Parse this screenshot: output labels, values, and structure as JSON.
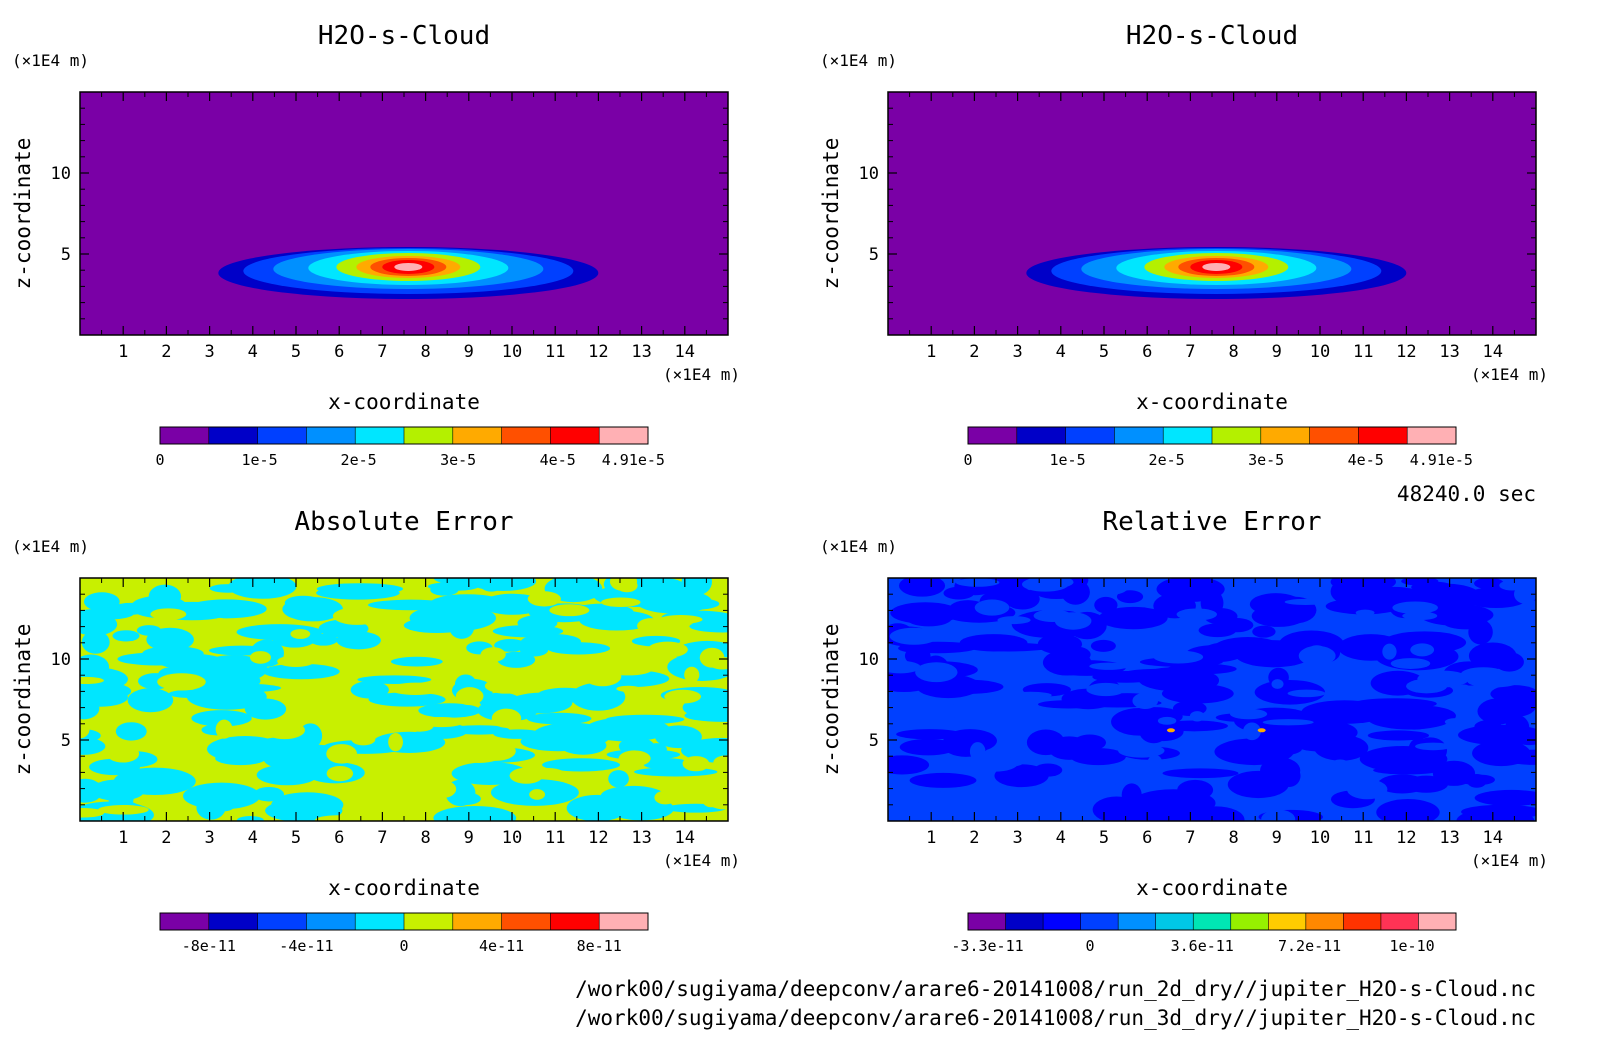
{
  "window": {
    "time_label": "48240.0 sec"
  },
  "footer": {
    "path_lines": [
      "/work00/sugiyama/deepconv/arare6-20141008/run_2d_dry//jupiter_H2O-s-Cloud.nc",
      "/work00/sugiyama/deepconv/arare6-20141008/run_3d_dry//jupiter_H2O-s-Cloud.nc"
    ]
  },
  "palette": {
    "cloud": [
      "#7a00a6",
      "#0000c8",
      "#0040ff",
      "#0090ff",
      "#00e6ff",
      "#b4f000",
      "#ffaa00",
      "#ff5000",
      "#ff0000",
      "#ffb0b4"
    ],
    "abs_error": [
      "#7a00a6",
      "#0000c8",
      "#0040ff",
      "#0090ff",
      "#00e6ff",
      "#c8f000",
      "#ffaa00",
      "#ff5000",
      "#ff0000",
      "#ffb0b4"
    ],
    "rel_error": [
      "#7a00a6",
      "#0000c8",
      "#0000ff",
      "#0040ff",
      "#0090ff",
      "#00c8e6",
      "#00e6b4",
      "#96f000",
      "#ffcc00",
      "#ff8800",
      "#ff3300",
      "#ff3355",
      "#ffb0b4"
    ]
  },
  "chart_data": [
    {
      "type": "heatmap",
      "id": "h2o_a",
      "title": "H2O-s-Cloud",
      "xlabel": "x-coordinate",
      "ylabel": "z-coordinate",
      "x_unit": "(×1E4 m)",
      "y_unit": "(×1E4 m)",
      "xlim": [
        0,
        15
      ],
      "ylim": [
        0,
        15
      ],
      "x_ticks": [
        "1",
        "2",
        "3",
        "4",
        "5",
        "6",
        "7",
        "8",
        "9",
        "10",
        "11",
        "12",
        "13",
        "14"
      ],
      "y_ticks": [
        "5",
        "10"
      ],
      "colorbar_labels": [
        "0",
        "1e-5",
        "2e-5",
        "3e-5",
        "4e-5",
        "4.91e-5"
      ],
      "palette": "cloud",
      "cloud_center": [
        7.6,
        4.2
      ],
      "max_value": 4.91e-05
    },
    {
      "type": "heatmap",
      "id": "h2o_b",
      "title": "H2O-s-Cloud",
      "xlabel": "x-coordinate",
      "ylabel": "z-coordinate",
      "x_unit": "(×1E4 m)",
      "y_unit": "(×1E4 m)",
      "xlim": [
        0,
        15
      ],
      "ylim": [
        0,
        15
      ],
      "x_ticks": [
        "1",
        "2",
        "3",
        "4",
        "5",
        "6",
        "7",
        "8",
        "9",
        "10",
        "11",
        "12",
        "13",
        "14"
      ],
      "y_ticks": [
        "5",
        "10"
      ],
      "colorbar_labels": [
        "0",
        "1e-5",
        "2e-5",
        "3e-5",
        "4e-5",
        "4.91e-5"
      ],
      "palette": "cloud",
      "cloud_center": [
        7.6,
        4.2
      ],
      "max_value": 4.91e-05
    },
    {
      "type": "heatmap",
      "id": "abs_err",
      "title": "Absolute Error",
      "xlabel": "x-coordinate",
      "ylabel": "z-coordinate",
      "x_unit": "(×1E4 m)",
      "y_unit": "(×1E4 m)",
      "xlim": [
        0,
        15
      ],
      "ylim": [
        0,
        15
      ],
      "x_ticks": [
        "1",
        "2",
        "3",
        "4",
        "5",
        "6",
        "7",
        "8",
        "9",
        "10",
        "11",
        "12",
        "13",
        "14"
      ],
      "y_ticks": [
        "5",
        "10"
      ],
      "colorbar_labels": [
        "-8e-11",
        "-4e-11",
        "0",
        "4e-11",
        "8e-11"
      ],
      "palette": "abs_error",
      "field_colors": [
        "#c8f000",
        "#00e6ff"
      ]
    },
    {
      "type": "heatmap",
      "id": "rel_err",
      "title": "Relative Error",
      "xlabel": "x-coordinate",
      "ylabel": "z-coordinate",
      "x_unit": "(×1E4 m)",
      "y_unit": "(×1E4 m)",
      "xlim": [
        0,
        15
      ],
      "ylim": [
        0,
        15
      ],
      "x_ticks": [
        "1",
        "2",
        "3",
        "4",
        "5",
        "6",
        "7",
        "8",
        "9",
        "10",
        "11",
        "12",
        "13",
        "14"
      ],
      "y_ticks": [
        "5",
        "10"
      ],
      "colorbar_labels": [
        "-3.3e-11",
        "0",
        "3.6e-11",
        "7.2e-11",
        "1e-10"
      ],
      "palette": "rel_error",
      "field_colors": [
        "#0040ff",
        "#0000ff"
      ]
    }
  ]
}
